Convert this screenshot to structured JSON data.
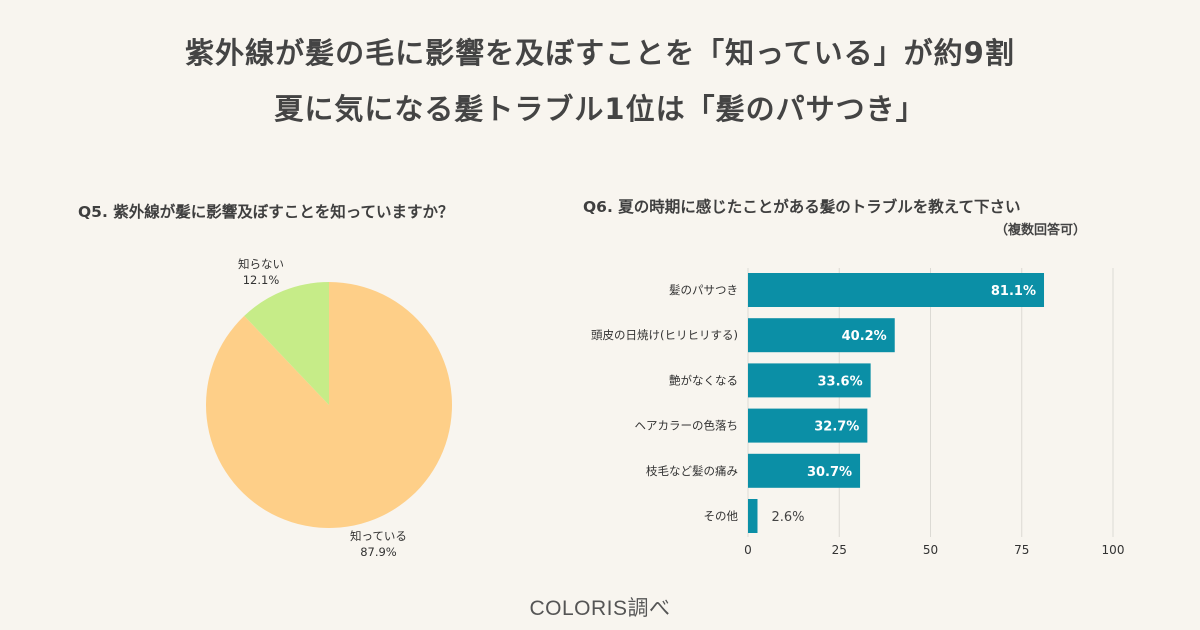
{
  "headline": {
    "line1": "紫外線が髪の毛に影響を及ぼすことを「知っている」が約9割",
    "line2": "夏に気になる髪トラブル1位は「髪のパサつき」"
  },
  "q5": {
    "title": "Q5. 紫外線が髪に影響及ぼすことを知っていますか？",
    "labels": {
      "unknown_name": "知らない",
      "unknown_value": "12.1%",
      "known_name": "知っている",
      "known_value": "87.9%"
    }
  },
  "q6": {
    "title": "Q6. 夏の時期に感じたことがある髪のトラブルを教えて下さい",
    "note": "（複数回答可）"
  },
  "footer": "COLORIS調べ",
  "colors": {
    "pie_known": "#fecf88",
    "pie_unknown": "#c6ec88",
    "bar": "#0b8fa6",
    "grid": "#dcdad4"
  },
  "chart_data": [
    {
      "type": "pie",
      "title": "Q5. 紫外線が髪に影響及ぼすことを知っていますか？",
      "slices": [
        {
          "label": "知っている",
          "value": 87.9
        },
        {
          "label": "知らない",
          "value": 12.1
        }
      ]
    },
    {
      "type": "bar",
      "orientation": "horizontal",
      "title": "Q6. 夏の時期に感じたことがある髪のトラブルを教えて下さい",
      "categories": [
        "髪のパサつき",
        "頭皮の日焼け(ヒリヒリする)",
        "艶がなくなる",
        "ヘアカラーの色落ち",
        "枝毛など髪の痛み",
        "その他"
      ],
      "values": [
        81.1,
        40.2,
        33.6,
        32.7,
        30.7,
        2.6
      ],
      "value_labels": [
        "81.1%",
        "40.2%",
        "33.6%",
        "32.7%",
        "30.7%",
        "2.6%"
      ],
      "xlim": [
        0,
        100
      ],
      "xticks": [
        "0",
        "25",
        "50",
        "75",
        "100"
      ],
      "grid": true
    }
  ]
}
